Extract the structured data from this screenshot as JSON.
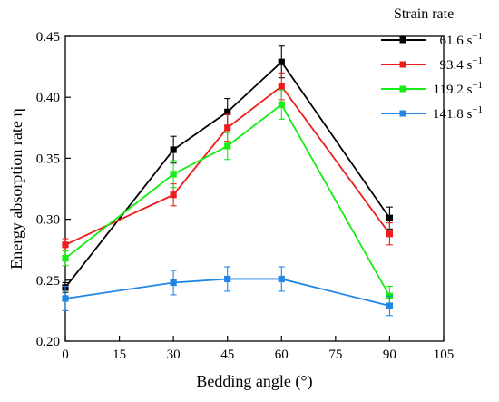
{
  "chart_data": {
    "type": "line",
    "xlabel": "Bedding angle (°)",
    "ylabel": "Energy absorption rate η",
    "xlim": [
      0,
      105
    ],
    "ylim": [
      0.2,
      0.45
    ],
    "x_ticks": [
      "0",
      "15",
      "30",
      "45",
      "60",
      "75",
      "90",
      "105"
    ],
    "y_ticks": [
      "0.20",
      "0.25",
      "0.30",
      "0.35",
      "0.40",
      "0.45"
    ],
    "x": [
      0,
      30,
      45,
      60,
      90
    ],
    "legend": {
      "title": "Strain rate",
      "placement": "top-right",
      "unit_base": "s",
      "unit_exp": "−1"
    },
    "series": [
      {
        "name": "61.6",
        "color": "#000000",
        "values": [
          0.244,
          0.357,
          0.388,
          0.429,
          0.301
        ],
        "errors": [
          0.004,
          0.011,
          0.011,
          0.013,
          0.009
        ]
      },
      {
        "name": "93.4",
        "color": "#ee1c1c",
        "values": [
          0.279,
          0.32,
          0.375,
          0.409,
          0.288
        ],
        "errors": [
          0.005,
          0.009,
          0.011,
          0.011,
          0.009
        ]
      },
      {
        "name": "119.2",
        "color": "#14ee14",
        "values": [
          0.268,
          0.337,
          0.36,
          0.394,
          0.237
        ],
        "errors": [
          0.006,
          0.011,
          0.011,
          0.012,
          0.008
        ]
      },
      {
        "name": "141.8",
        "color": "#1f86e6",
        "values": [
          0.235,
          0.248,
          0.251,
          0.251,
          0.229
        ],
        "errors": [
          0.01,
          0.01,
          0.01,
          0.01,
          0.008
        ]
      }
    ]
  }
}
